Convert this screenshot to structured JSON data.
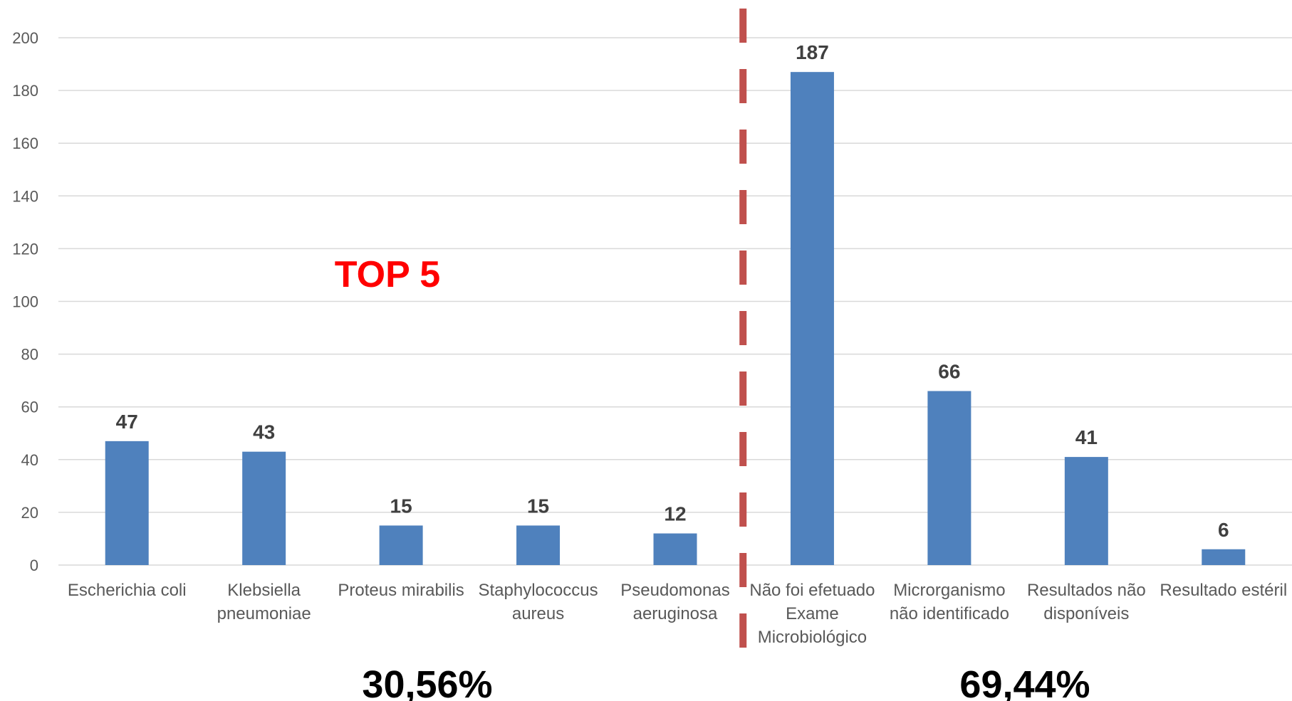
{
  "chart_data": {
    "type": "bar",
    "categories": [
      "Escherichia coli",
      "Klebsiella pneumoniae",
      "Proteus mirabilis",
      "Staphylococcus aureus",
      "Pseudomonas aeruginosa",
      "Não foi efetuado Exame Microbiológico",
      "Microrganismo não identificado",
      "Resultados não disponíveis",
      "Resultado estéril"
    ],
    "category_lines": [
      [
        "Escherichia coli"
      ],
      [
        "Klebsiella",
        "pneumoniae"
      ],
      [
        "Proteus mirabilis"
      ],
      [
        "Staphylococcus",
        "aureus"
      ],
      [
        "Pseudomonas",
        "aeruginosa"
      ],
      [
        "Não foi efetuado",
        "Exame",
        "Microbiológico"
      ],
      [
        "Microrganismo",
        "não identificado"
      ],
      [
        "Resultados não",
        "disponíveis"
      ],
      [
        "Resultado estéril"
      ]
    ],
    "values": [
      47,
      43,
      15,
      15,
      12,
      187,
      66,
      41,
      6
    ],
    "ylim": [
      0,
      200
    ],
    "yticks": [
      0,
      20,
      40,
      60,
      80,
      100,
      120,
      140,
      160,
      180,
      200
    ],
    "grid": true,
    "bar_color": "#4f81bd",
    "divider_color": "#c0504d",
    "divider_after_index": 4,
    "annotations": {
      "top5_label": "TOP 5",
      "left_percent": "30,56%",
      "right_percent": "69,44%"
    }
  }
}
